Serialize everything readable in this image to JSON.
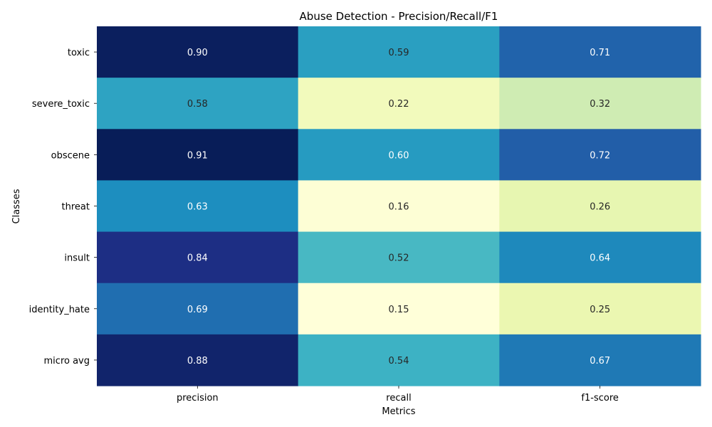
{
  "chart_data": {
    "type": "heatmap",
    "title": "Abuse Detection - Precision/Recall/F1",
    "xlabel": "Metrics",
    "ylabel": "Classes",
    "x_categories": [
      "precision",
      "recall",
      "f1-score"
    ],
    "y_categories": [
      "toxic",
      "severe_toxic",
      "obscene",
      "threat",
      "insult",
      "identity_hate",
      "micro avg"
    ],
    "values": [
      [
        0.9,
        0.59,
        0.71
      ],
      [
        0.58,
        0.22,
        0.32
      ],
      [
        0.91,
        0.6,
        0.72
      ],
      [
        0.63,
        0.16,
        0.26
      ],
      [
        0.84,
        0.52,
        0.64
      ],
      [
        0.69,
        0.15,
        0.25
      ],
      [
        0.88,
        0.54,
        0.67
      ]
    ],
    "value_labels": [
      [
        "0.90",
        "0.59",
        "0.71"
      ],
      [
        "0.58",
        "0.22",
        "0.32"
      ],
      [
        "0.91",
        "0.60",
        "0.72"
      ],
      [
        "0.63",
        "0.16",
        "0.26"
      ],
      [
        "0.84",
        "0.52",
        "0.64"
      ],
      [
        "0.69",
        "0.15",
        "0.25"
      ],
      [
        "0.88",
        "0.54",
        "0.67"
      ]
    ],
    "colormap": "YlGnBu",
    "colorbar": false,
    "grid": false
  }
}
